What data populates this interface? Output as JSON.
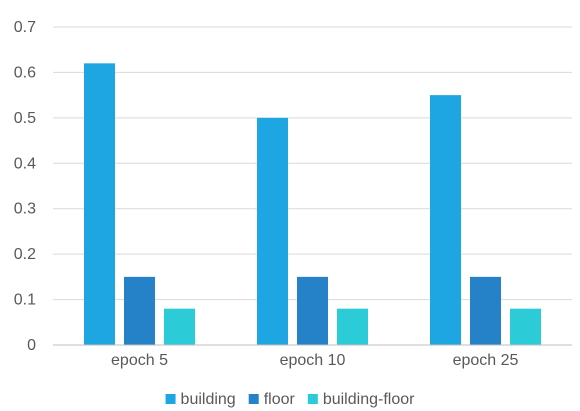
{
  "chart_data": {
    "type": "bar",
    "title": "",
    "xlabel": "",
    "ylabel": "",
    "categories": [
      "epoch 5",
      "epoch 10",
      "epoch 25"
    ],
    "series": [
      {
        "name": "building",
        "color": "#1EA6E3",
        "values": [
          0.62,
          0.5,
          0.55
        ]
      },
      {
        "name": "floor",
        "color": "#2682C8",
        "values": [
          0.15,
          0.15,
          0.15
        ]
      },
      {
        "name": "building-floor",
        "color": "#2BCCD8",
        "values": [
          0.08,
          0.08,
          0.08
        ]
      }
    ],
    "ylim": [
      0,
      0.7
    ],
    "yticks": [
      "0",
      "0.1",
      "0.2",
      "0.3",
      "0.4",
      "0.5",
      "0.6",
      "0.7"
    ],
    "grid": true,
    "legend_position": "bottom"
  }
}
